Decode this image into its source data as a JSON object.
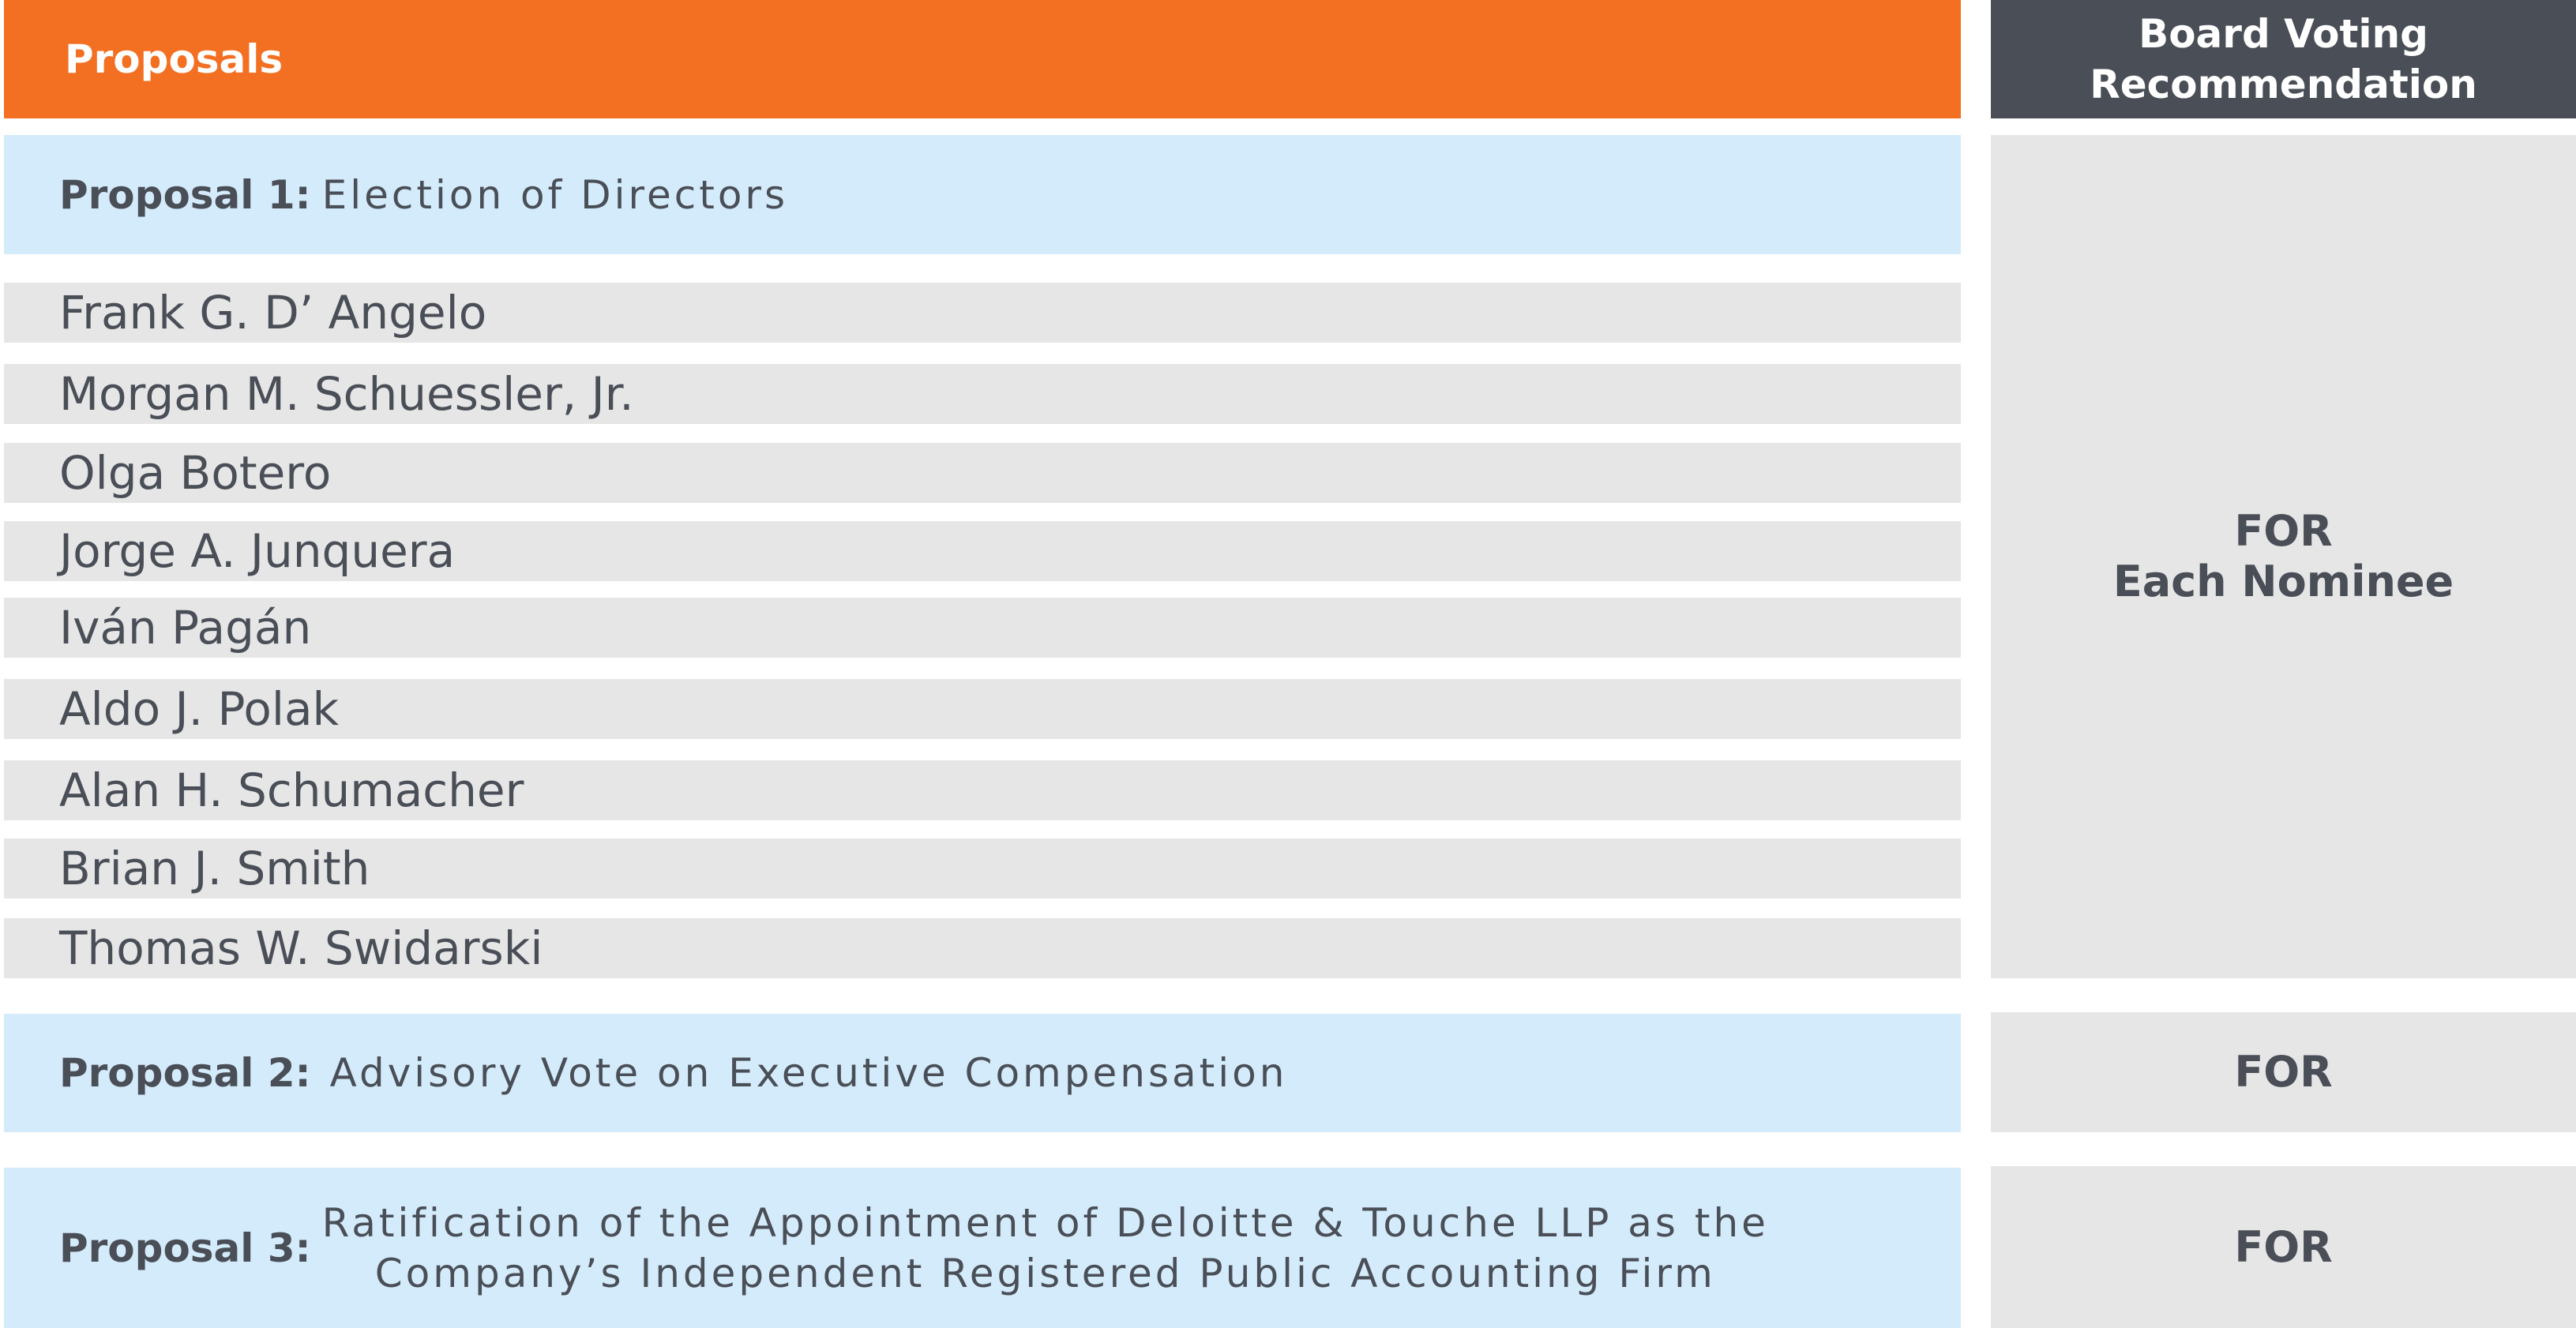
{
  "header": {
    "proposals_label": "Proposals",
    "recommendation_line1": "Board Voting",
    "recommendation_line2": "Recommendation"
  },
  "proposal1": {
    "label": "Proposal 1:",
    "title": "Election of Directors",
    "nominees": [
      "Frank G. D’ Angelo",
      "Morgan M. Schuessler, Jr.",
      "Olga Botero",
      "Jorge A. Junquera",
      "Iván Pagán",
      "Aldo J. Polak",
      "Alan H. Schumacher",
      "Brian J. Smith",
      "Thomas W. Swidarski"
    ],
    "recommendation_line1": "FOR",
    "recommendation_line2": "Each Nominee"
  },
  "proposal2": {
    "label": "Proposal 2:",
    "title": "Advisory Vote on Executive Compensation",
    "recommendation": "FOR"
  },
  "proposal3": {
    "label": "Proposal 3:",
    "title_line1": "Ratification of the Appointment of Deloitte & Touche LLP as the",
    "title_line2": "Company’s Independent Registered Public Accounting Firm",
    "recommendation": "FOR"
  },
  "colors": {
    "header_orange": "#f36f21",
    "header_dark": "#4a4f57",
    "proposal_blue": "#d4ebfb",
    "row_gray": "#e6e6e7",
    "text_dark": "#4a4f57"
  }
}
